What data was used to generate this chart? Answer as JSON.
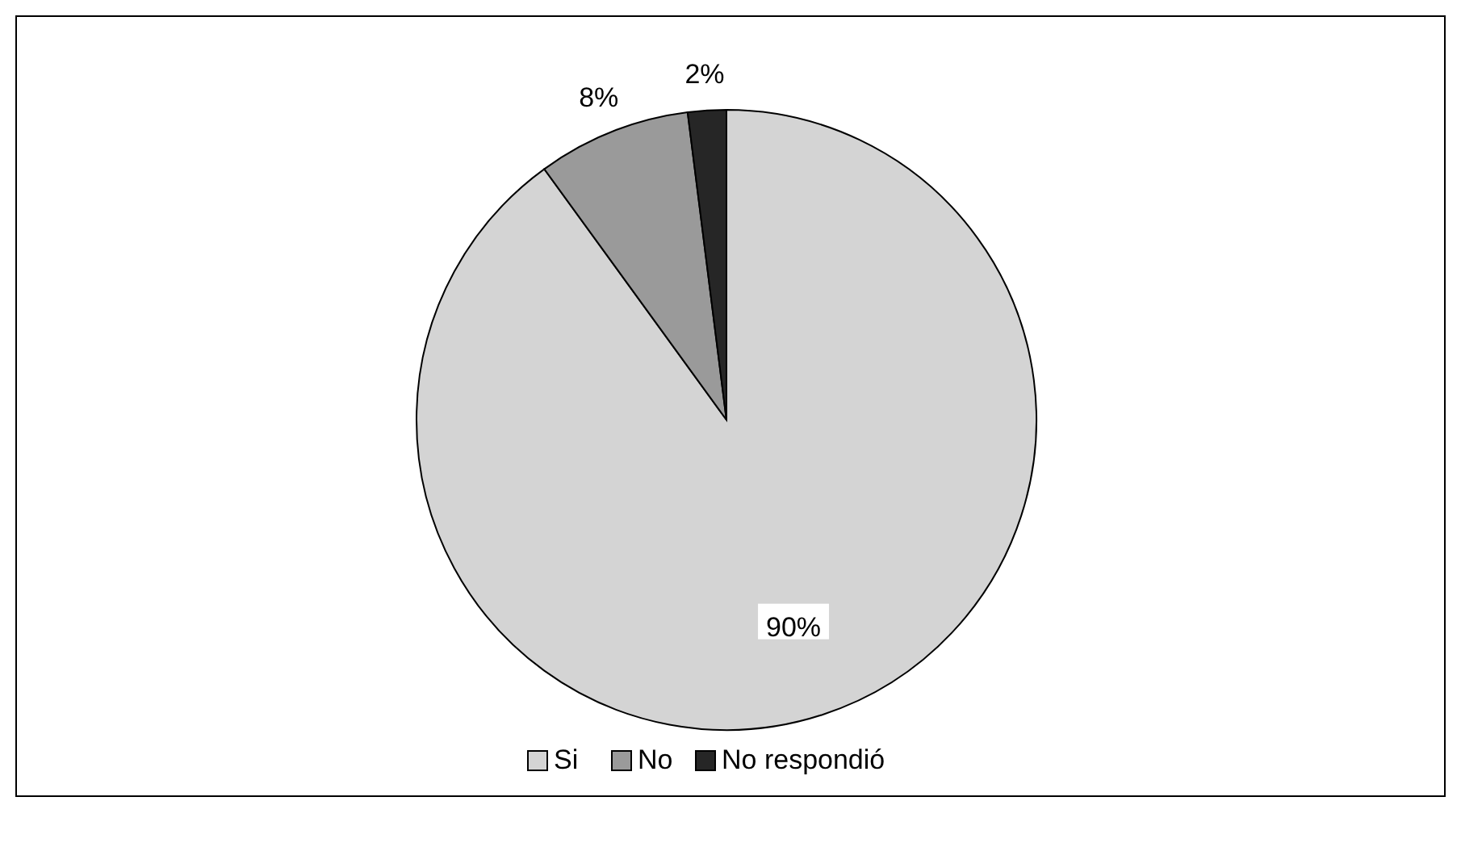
{
  "chart_data": {
    "type": "pie",
    "categories": [
      "Si",
      "No",
      "No respondió"
    ],
    "values": [
      90,
      8,
      2
    ],
    "colors": [
      "#d4d4d4",
      "#9a9a9a",
      "#262626"
    ],
    "value_labels": [
      "90%",
      "8%",
      "2%"
    ],
    "legend": "bottom"
  }
}
